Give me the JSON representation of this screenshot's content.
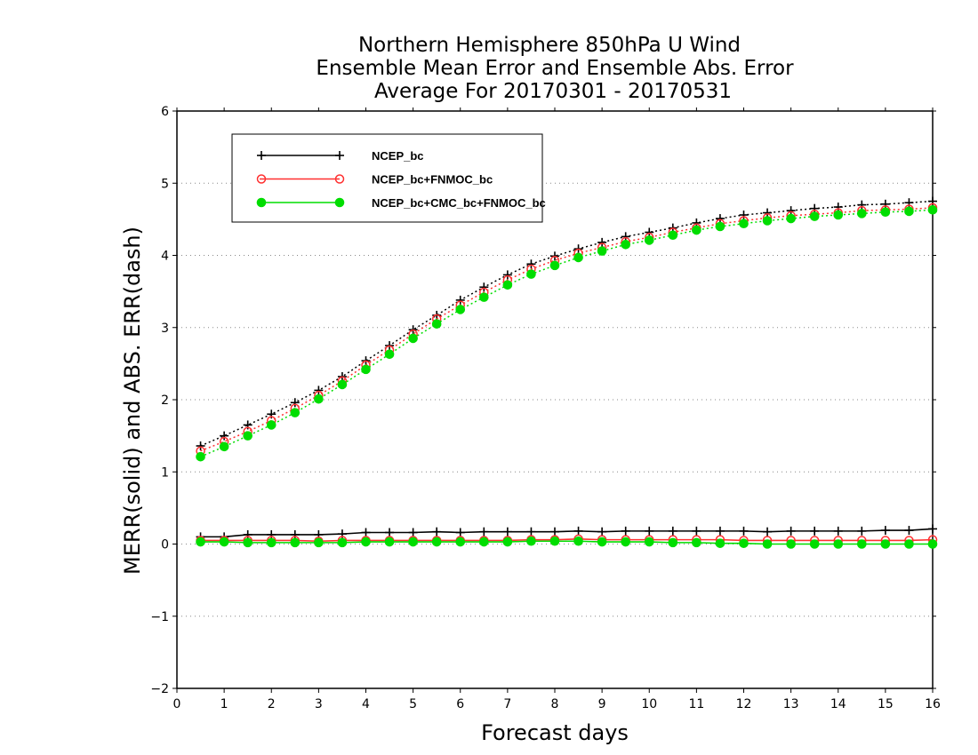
{
  "chart_data": {
    "type": "line",
    "title_lines": [
      "Northern Hemisphere 850hPa U Wind",
      "Ensemble Mean Error and Ensemble Abs. Error",
      "Average For 20170301 - 20170531"
    ],
    "xlabel": "Forecast days",
    "ylabel": "MERR(solid) and ABS. ERR(dash)",
    "xlim": [
      0,
      16
    ],
    "ylim": [
      -2,
      6
    ],
    "x_ticks": [
      0,
      1,
      2,
      3,
      4,
      5,
      6,
      7,
      8,
      9,
      10,
      11,
      12,
      13,
      14,
      15,
      16
    ],
    "x_tick_labels": [
      "0",
      "1",
      "2",
      "3",
      "4",
      "5",
      "6",
      "7",
      "8",
      "9",
      "10",
      "11",
      "12",
      "13",
      "14",
      "15",
      "16"
    ],
    "y_ticks": [
      -2,
      -1,
      0,
      1,
      2,
      3,
      4,
      5,
      6
    ],
    "y_tick_labels": [
      "−2",
      "−1",
      "0",
      "1",
      "2",
      "3",
      "4",
      "5",
      "6"
    ],
    "grid": "horizontal dotted",
    "legend_position": "top-left",
    "x": [
      0.5,
      1,
      1.5,
      2,
      2.5,
      3,
      3.5,
      4,
      4.5,
      5,
      5.5,
      6,
      6.5,
      7,
      7.5,
      8,
      8.5,
      9,
      9.5,
      10,
      10.5,
      11,
      11.5,
      12,
      12.5,
      13,
      13.5,
      14,
      14.5,
      15,
      15.5,
      16
    ],
    "series": [
      {
        "name": "NCEP_bc",
        "color": "#000000",
        "marker": "plus",
        "merr": [
          0.1,
          0.1,
          0.13,
          0.13,
          0.13,
          0.13,
          0.14,
          0.16,
          0.16,
          0.16,
          0.17,
          0.16,
          0.17,
          0.17,
          0.17,
          0.17,
          0.18,
          0.17,
          0.18,
          0.18,
          0.18,
          0.18,
          0.18,
          0.18,
          0.17,
          0.18,
          0.18,
          0.18,
          0.18,
          0.19,
          0.19,
          0.21
        ],
        "abs_err": [
          1.36,
          1.5,
          1.65,
          1.8,
          1.96,
          2.13,
          2.32,
          2.54,
          2.75,
          2.97,
          3.17,
          3.38,
          3.56,
          3.73,
          3.88,
          3.99,
          4.09,
          4.18,
          4.26,
          4.32,
          4.38,
          4.45,
          4.51,
          4.56,
          4.59,
          4.62,
          4.65,
          4.67,
          4.7,
          4.71,
          4.73,
          4.75
        ]
      },
      {
        "name": "NCEP_bc+FNMOC_bc",
        "color": "#ff3030",
        "marker": "open-circle",
        "merr": [
          0.05,
          0.05,
          0.05,
          0.05,
          0.05,
          0.04,
          0.05,
          0.05,
          0.05,
          0.05,
          0.05,
          0.05,
          0.05,
          0.05,
          0.06,
          0.06,
          0.07,
          0.06,
          0.06,
          0.06,
          0.06,
          0.06,
          0.06,
          0.05,
          0.05,
          0.05,
          0.05,
          0.05,
          0.05,
          0.05,
          0.05,
          0.06
        ],
        "abs_err": [
          1.29,
          1.42,
          1.56,
          1.71,
          1.88,
          2.06,
          2.26,
          2.48,
          2.69,
          2.91,
          3.12,
          3.31,
          3.49,
          3.66,
          3.81,
          3.93,
          4.03,
          4.11,
          4.19,
          4.25,
          4.32,
          4.38,
          4.44,
          4.48,
          4.52,
          4.55,
          4.57,
          4.59,
          4.62,
          4.63,
          4.64,
          4.66
        ]
      },
      {
        "name": "NCEP_bc+CMC_bc+FNMOC_bc",
        "color": "#00dd00",
        "marker": "filled-circle",
        "merr": [
          0.03,
          0.03,
          0.02,
          0.02,
          0.02,
          0.02,
          0.02,
          0.03,
          0.03,
          0.03,
          0.03,
          0.03,
          0.03,
          0.03,
          0.04,
          0.04,
          0.04,
          0.03,
          0.03,
          0.03,
          0.02,
          0.02,
          0.01,
          0.01,
          0.0,
          0.0,
          0.0,
          0.0,
          0.0,
          0.0,
          0.0,
          0.0
        ],
        "abs_err": [
          1.21,
          1.35,
          1.5,
          1.65,
          1.82,
          2.01,
          2.21,
          2.42,
          2.63,
          2.85,
          3.05,
          3.25,
          3.42,
          3.59,
          3.74,
          3.86,
          3.97,
          4.06,
          4.15,
          4.21,
          4.28,
          4.35,
          4.4,
          4.44,
          4.48,
          4.51,
          4.54,
          4.56,
          4.58,
          4.6,
          4.61,
          4.63
        ]
      }
    ]
  }
}
